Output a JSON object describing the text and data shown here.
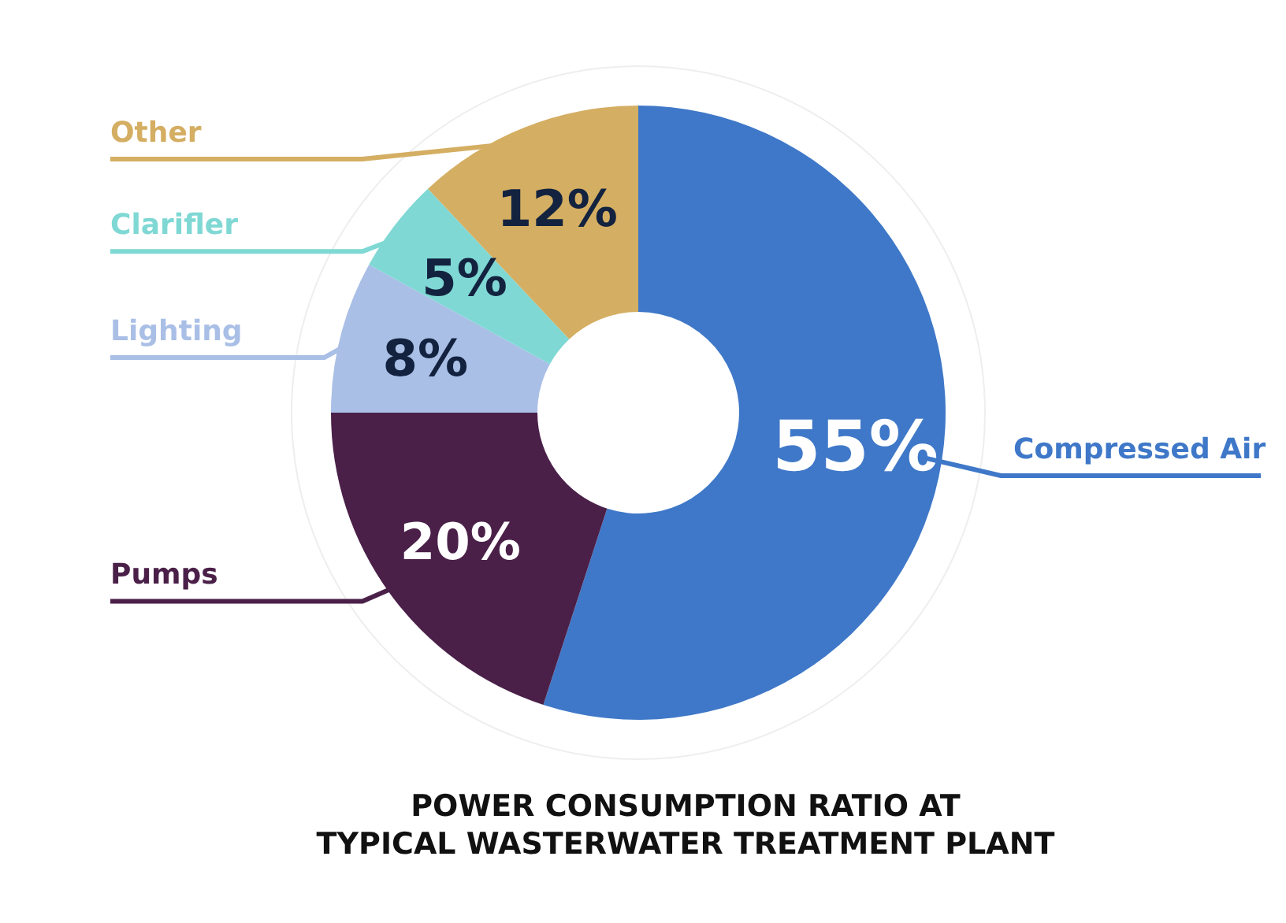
{
  "chart_data": {
    "type": "donut",
    "title": "POWER CONSUMPTION RATIO AT\nTYPICAL WASTERWATER TREATMENT PLANT",
    "categories": [
      "Compressed Air",
      "Pumps",
      "Lighting",
      "Clarifler",
      "Other"
    ],
    "values": [
      55,
      20,
      8,
      5,
      12
    ],
    "colors": [
      "#3f78c8",
      "#4a2049",
      "#a9bfe6",
      "#7fd8d4",
      "#d4ae62"
    ],
    "value_labels": [
      "55%",
      "20%",
      "8%",
      "5%",
      "12%"
    ]
  }
}
